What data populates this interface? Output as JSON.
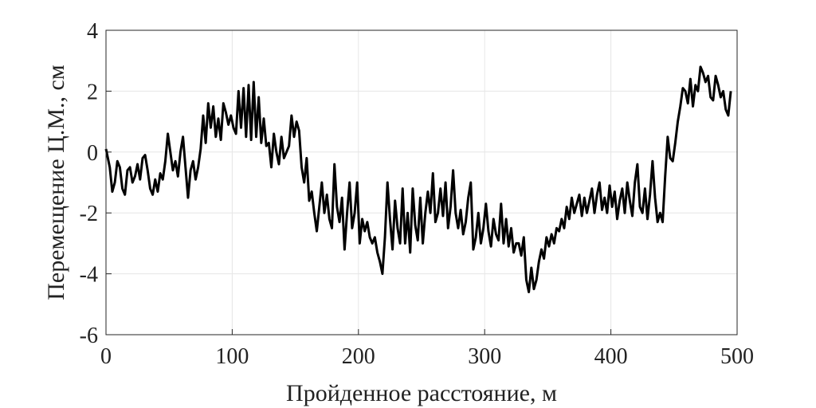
{
  "chart_data": {
    "type": "line",
    "xlabel": "Пройденное расстояние, м",
    "ylabel": "Перемещение Ц.М., см",
    "xlim": [
      0,
      500
    ],
    "ylim": [
      -6,
      4
    ],
    "xticks": [
      0,
      100,
      200,
      300,
      400,
      500
    ],
    "yticks": [
      -6,
      -4,
      -2,
      0,
      2,
      4
    ],
    "grid": true,
    "x": [
      0,
      3,
      5,
      7,
      9,
      11,
      13,
      15,
      17,
      19,
      21,
      23,
      25,
      27,
      29,
      31,
      33,
      35,
      37,
      39,
      41,
      43,
      45,
      47,
      49,
      51,
      53,
      55,
      57,
      59,
      61,
      63,
      65,
      67,
      69,
      71,
      73,
      75,
      77,
      79,
      81,
      83,
      85,
      87,
      89,
      91,
      93,
      95,
      97,
      99,
      101,
      103,
      105,
      107,
      109,
      111,
      113,
      115,
      117,
      119,
      121,
      123,
      125,
      127,
      129,
      131,
      133,
      135,
      137,
      139,
      141,
      143,
      145,
      147,
      149,
      151,
      153,
      155,
      157,
      159,
      161,
      163,
      165,
      167,
      169,
      171,
      173,
      175,
      177,
      179,
      181,
      183,
      185,
      187,
      189,
      191,
      193,
      195,
      197,
      199,
      201,
      203,
      205,
      207,
      209,
      211,
      213,
      215,
      217,
      219,
      221,
      223,
      225,
      227,
      229,
      231,
      233,
      235,
      237,
      239,
      241,
      243,
      245,
      247,
      249,
      251,
      253,
      255,
      257,
      259,
      261,
      263,
      265,
      267,
      269,
      271,
      273,
      275,
      277,
      279,
      281,
      283,
      285,
      287,
      289,
      291,
      293,
      295,
      297,
      299,
      301,
      303,
      305,
      307,
      309,
      311,
      313,
      315,
      317,
      319,
      321,
      323,
      325,
      327,
      329,
      331,
      333,
      335,
      337,
      339,
      341,
      343,
      345,
      347,
      349,
      351,
      353,
      355,
      357,
      359,
      361,
      363,
      365,
      367,
      369,
      371,
      373,
      375,
      377,
      379,
      381,
      383,
      385,
      387,
      389,
      391,
      393,
      395,
      397,
      399,
      401,
      403,
      405,
      407,
      409,
      411,
      413,
      415,
      417,
      419,
      421,
      423,
      425,
      427,
      429,
      431,
      433,
      435,
      437,
      439,
      441,
      443,
      445,
      447,
      449,
      451,
      453,
      455,
      457,
      459,
      461,
      463,
      465,
      467,
      469,
      471,
      473,
      475,
      477,
      479,
      481,
      483,
      485,
      487,
      489,
      491,
      493,
      495
    ],
    "series": [
      {
        "color": "#000000",
        "values": [
          0.1,
          -0.5,
          -1.3,
          -1.0,
          -0.3,
          -0.5,
          -1.2,
          -1.4,
          -0.6,
          -0.5,
          -1.0,
          -0.8,
          -0.4,
          -0.9,
          -0.2,
          -0.1,
          -0.6,
          -1.2,
          -1.4,
          -0.9,
          -1.3,
          -0.7,
          -0.9,
          -0.3,
          0.6,
          0.0,
          -0.6,
          -0.3,
          -0.8,
          0.0,
          0.5,
          -0.5,
          -1.5,
          -0.6,
          -0.3,
          -0.9,
          -0.5,
          0.1,
          1.2,
          0.3,
          1.6,
          0.8,
          1.5,
          0.5,
          1.1,
          0.4,
          1.6,
          1.3,
          0.9,
          1.2,
          0.8,
          0.6,
          2.0,
          0.8,
          2.1,
          0.5,
          2.2,
          0.4,
          2.3,
          0.5,
          1.8,
          0.3,
          1.1,
          0.2,
          0.3,
          -0.5,
          0.6,
          0.0,
          -0.4,
          0.5,
          -0.2,
          0.0,
          0.2,
          1.2,
          0.5,
          1.0,
          0.7,
          -0.5,
          -1.0,
          -0.2,
          -1.6,
          -1.3,
          -2.0,
          -2.6,
          -1.8,
          -1.0,
          -2.0,
          -1.4,
          -2.2,
          -2.5,
          -0.4,
          -1.8,
          -2.3,
          -1.5,
          -3.2,
          -2.0,
          -1.0,
          -2.5,
          -2.0,
          -1.0,
          -3.0,
          -2.2,
          -2.6,
          -2.3,
          -2.8,
          -3.0,
          -2.8,
          -3.3,
          -3.6,
          -4.0,
          -2.8,
          -1.0,
          -2.2,
          -3.2,
          -1.6,
          -2.5,
          -3.0,
          -1.2,
          -3.0,
          -2.0,
          -3.3,
          -1.2,
          -2.4,
          -2.9,
          -1.5,
          -3.0,
          -2.0,
          -1.3,
          -2.0,
          -0.7,
          -2.3,
          -2.0,
          -1.2,
          -2.1,
          -1.0,
          -2.5,
          -1.8,
          -0.6,
          -2.0,
          -2.5,
          -1.9,
          -2.7,
          -2.3,
          -1.5,
          -1.0,
          -3.2,
          -2.8,
          -2.0,
          -3.0,
          -2.5,
          -1.7,
          -2.6,
          -3.1,
          -2.2,
          -2.7,
          -2.9,
          -1.7,
          -3.0,
          -2.2,
          -3.1,
          -2.5,
          -3.3,
          -3.0,
          -3.0,
          -3.4,
          -2.8,
          -4.2,
          -4.6,
          -3.8,
          -4.5,
          -4.2,
          -3.6,
          -3.2,
          -3.5,
          -2.8,
          -3.1,
          -2.7,
          -3.0,
          -2.5,
          -2.6,
          -2.2,
          -2.5,
          -1.8,
          -2.2,
          -1.5,
          -2.0,
          -1.7,
          -1.4,
          -2.1,
          -1.5,
          -2.0,
          -1.6,
          -1.2,
          -2.0,
          -1.4,
          -1.0,
          -1.9,
          -1.5,
          -2.0,
          -1.1,
          -1.8,
          -1.3,
          -2.2,
          -1.6,
          -1.2,
          -2.0,
          -1.0,
          -1.6,
          -2.1,
          -1.0,
          -0.4,
          -1.8,
          -2.0,
          -1.2,
          -2.2,
          -1.4,
          -0.3,
          -1.5,
          -2.3,
          -2.0,
          -2.3,
          -0.8,
          0.5,
          -0.2,
          -0.3,
          0.3,
          1.0,
          1.5,
          2.1,
          2.0,
          1.6,
          2.4,
          1.5,
          2.2,
          2.0,
          2.8,
          2.6,
          2.3,
          2.5,
          1.8,
          1.7,
          2.5,
          2.2,
          1.8,
          2.0,
          1.4,
          1.2,
          2.0
        ]
      }
    ]
  }
}
